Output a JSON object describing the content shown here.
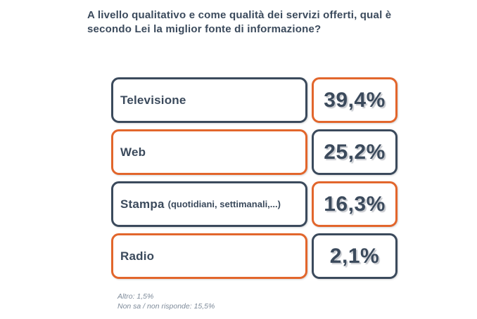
{
  "title": {
    "lines": [
      "A livello qualitativo e come qualità dei servizi offerti, qual è",
      "secondo Lei la miglior fonte di informazione?"
    ]
  },
  "rows": [
    {
      "label": "Televisione",
      "detail": "",
      "value": "39,4%",
      "label_style": "navy",
      "value_style": "orange"
    },
    {
      "label": "Web",
      "detail": "",
      "value": "25,2%",
      "label_style": "orange",
      "value_style": "navy"
    },
    {
      "label": "Stampa",
      "detail": "(quotidiani, settimanali,...)",
      "value": "16,3%",
      "label_style": "navy",
      "value_style": "orange"
    },
    {
      "label": "Radio",
      "detail": "",
      "value": "2,1%",
      "label_style": "orange",
      "value_style": "navy"
    }
  ],
  "footnotes": [
    "Altro: 1,5%",
    "Non sa / non risponde: 15,5%"
  ],
  "colors": {
    "navy": "#3B4A5C",
    "orange": "#E2662C",
    "footnote": "#7D8A99"
  },
  "chart_data": {
    "type": "bar",
    "title": "A livello qualitativo e come qualità dei servizi offerti, qual è secondo Lei la miglior fonte di informazione?",
    "categories": [
      "Televisione",
      "Web",
      "Stampa (quotidiani, settimanali,...)",
      "Radio"
    ],
    "values": [
      39.4,
      25.2,
      16.3,
      2.1
    ],
    "unit": "%",
    "annotations": [
      "Altro: 1,5%",
      "Non sa / non risponde: 15,5%"
    ],
    "legend": "none",
    "grid": false
  }
}
